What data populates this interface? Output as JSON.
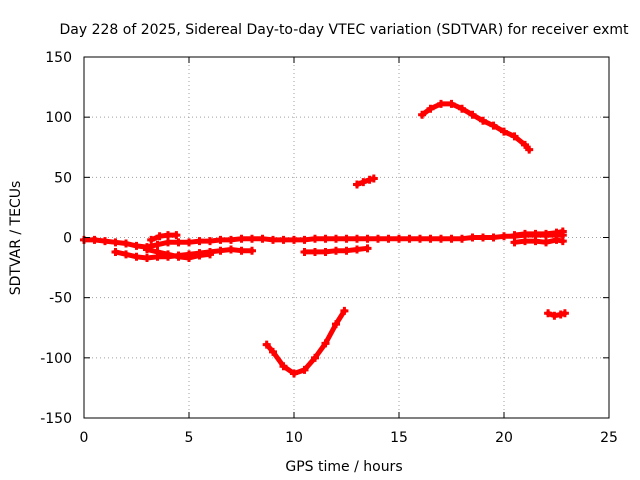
{
  "chart_data": {
    "type": "scatter",
    "title": "Day 228 of 2025, Sidereal Day-to-day VTEC variation (SDTVAR) for receiver exmt",
    "xlabel": "GPS time / hours",
    "ylabel": "SDTVAR / TECUs",
    "xlim": [
      0,
      25
    ],
    "ylim": [
      -150,
      150
    ],
    "xticks": [
      0,
      5,
      10,
      15,
      20,
      25
    ],
    "yticks": [
      -150,
      -100,
      -50,
      0,
      50,
      100,
      150
    ],
    "grid": true,
    "series_color": "#ff0000",
    "series": [
      {
        "points": [
          [
            0.0,
            -2
          ],
          [
            0.5,
            -2
          ],
          [
            1.0,
            -3
          ],
          [
            1.5,
            -4
          ],
          [
            2.0,
            -5
          ],
          [
            2.5,
            -7
          ],
          [
            3.0,
            -8
          ],
          [
            3.5,
            -6
          ],
          [
            4.0,
            -4
          ],
          [
            4.5,
            -4
          ],
          [
            5.0,
            -4
          ],
          [
            5.5,
            -3
          ],
          [
            6.0,
            -3
          ],
          [
            6.5,
            -2
          ],
          [
            7.0,
            -2
          ],
          [
            7.5,
            -1
          ],
          [
            8.0,
            -1
          ],
          [
            8.5,
            -1
          ],
          [
            9.0,
            -2
          ],
          [
            9.5,
            -2
          ],
          [
            10.0,
            -2
          ],
          [
            10.5,
            -2
          ],
          [
            11.0,
            -1
          ],
          [
            11.5,
            -1
          ],
          [
            12.0,
            -1
          ],
          [
            12.5,
            -1
          ],
          [
            13.0,
            -1
          ],
          [
            13.5,
            -1
          ],
          [
            14.0,
            -1
          ],
          [
            14.5,
            -1
          ],
          [
            15.0,
            -1
          ],
          [
            15.5,
            -1
          ],
          [
            16.0,
            -1
          ],
          [
            16.5,
            -1
          ],
          [
            17.0,
            -1
          ],
          [
            17.5,
            -1
          ],
          [
            18.0,
            -1
          ],
          [
            18.5,
            0
          ],
          [
            19.0,
            0
          ],
          [
            19.5,
            0
          ],
          [
            20.0,
            1
          ],
          [
            20.5,
            1
          ],
          [
            21.0,
            2
          ],
          [
            21.5,
            2
          ],
          [
            22.0,
            2
          ],
          [
            22.5,
            2
          ],
          [
            22.8,
            2
          ]
        ]
      },
      {
        "points": [
          [
            1.5,
            -12
          ],
          [
            2.0,
            -14
          ],
          [
            2.5,
            -16
          ],
          [
            3.0,
            -17
          ],
          [
            3.5,
            -16
          ],
          [
            4.0,
            -16
          ],
          [
            4.5,
            -15
          ],
          [
            5.0,
            -14
          ],
          [
            5.5,
            -13
          ],
          [
            6.0,
            -12
          ],
          [
            6.5,
            -11
          ],
          [
            7.0,
            -10
          ],
          [
            7.5,
            -11
          ],
          [
            8.0,
            -11
          ]
        ]
      },
      {
        "points": [
          [
            3.0,
            -10
          ],
          [
            3.5,
            -12
          ],
          [
            4.0,
            -14
          ],
          [
            4.5,
            -16
          ],
          [
            5.0,
            -17
          ],
          [
            5.5,
            -15
          ],
          [
            6.0,
            -14
          ]
        ]
      },
      {
        "points": [
          [
            3.2,
            -2
          ],
          [
            3.6,
            1
          ],
          [
            4.0,
            2
          ],
          [
            4.4,
            2
          ]
        ]
      },
      {
        "points": [
          [
            10.5,
            -12
          ],
          [
            11.0,
            -12
          ],
          [
            11.5,
            -12
          ],
          [
            12.0,
            -11
          ],
          [
            12.5,
            -11
          ],
          [
            13.0,
            -10
          ],
          [
            13.5,
            -9
          ]
        ]
      },
      {
        "points": [
          [
            13.0,
            44
          ],
          [
            13.3,
            46
          ],
          [
            13.6,
            48
          ],
          [
            13.8,
            49
          ]
        ]
      },
      {
        "points": [
          [
            16.1,
            102
          ],
          [
            16.5,
            107
          ],
          [
            17.0,
            111
          ],
          [
            17.5,
            111
          ],
          [
            18.0,
            107
          ],
          [
            18.5,
            102
          ],
          [
            19.0,
            97
          ],
          [
            19.5,
            93
          ],
          [
            20.0,
            88
          ],
          [
            20.5,
            84
          ],
          [
            21.0,
            77
          ],
          [
            21.2,
            73
          ]
        ]
      },
      {
        "points": [
          [
            8.7,
            -89
          ],
          [
            9.0,
            -95
          ],
          [
            9.5,
            -107
          ],
          [
            10.0,
            -113
          ],
          [
            10.5,
            -110
          ],
          [
            11.0,
            -100
          ],
          [
            11.5,
            -88
          ],
          [
            12.0,
            -72
          ],
          [
            12.4,
            -61
          ]
        ]
      },
      {
        "points": [
          [
            20.5,
            -4
          ],
          [
            21.0,
            -3
          ],
          [
            21.5,
            -3
          ],
          [
            22.0,
            -4
          ],
          [
            22.5,
            -2
          ],
          [
            22.8,
            -3
          ]
        ]
      },
      {
        "points": [
          [
            20.5,
            2
          ],
          [
            21.0,
            3
          ],
          [
            21.5,
            3
          ],
          [
            22.0,
            3
          ],
          [
            22.5,
            4
          ],
          [
            22.8,
            5
          ]
        ]
      },
      {
        "points": [
          [
            22.1,
            -63
          ],
          [
            22.4,
            -65
          ],
          [
            22.7,
            -64
          ],
          [
            22.9,
            -63
          ]
        ]
      }
    ]
  }
}
